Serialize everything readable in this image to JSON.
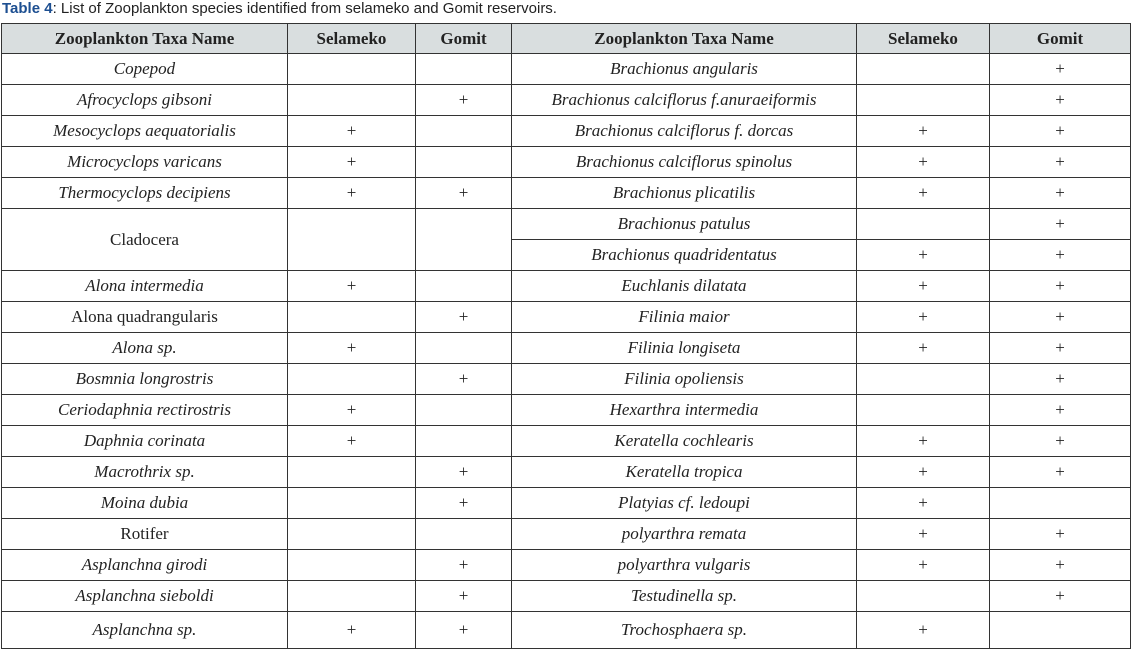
{
  "caption": {
    "label": "Table 4",
    "text": ": List of Zooplankton species identified from selameko and Gomit reservoirs."
  },
  "headers": [
    "Zooplankton Taxa Name",
    "Selameko",
    "Gomit",
    "Zooplankton Taxa Name",
    "Selameko",
    "Gomit"
  ],
  "left": [
    {
      "name": "Copepod",
      "selameko": "",
      "gomit": "",
      "italic": true
    },
    {
      "name": "Afrocyclops gibsoni",
      "selameko": "",
      "gomit": "+",
      "italic": true
    },
    {
      "name": "Mesocyclops aequatorialis",
      "selameko": "+",
      "gomit": "",
      "italic": true
    },
    {
      "name": "Microcyclops varicans",
      "selameko": "+",
      "gomit": "",
      "italic": true
    },
    {
      "name": "Thermocyclops decipiens",
      "selameko": "+",
      "gomit": "+",
      "italic": true
    },
    {
      "name": "Cladocera",
      "selameko": "",
      "gomit": "",
      "italic": false,
      "rowspan": 2
    },
    {
      "name": "Alona intermedia",
      "selameko": "+",
      "gomit": "",
      "italic": true
    },
    {
      "name": "Alona quadrangularis",
      "selameko": "",
      "gomit": "+",
      "italic": false
    },
    {
      "name": "Alona sp.",
      "selameko": "+",
      "gomit": "",
      "italic": true
    },
    {
      "name": "Bosmnia longrostris",
      "selameko": "",
      "gomit": "+",
      "italic": true
    },
    {
      "name": "Ceriodaphnia rectirostris",
      "selameko": "+",
      "gomit": "",
      "italic": true
    },
    {
      "name": "Daphnia corinata",
      "selameko": "+",
      "gomit": "",
      "italic": true
    },
    {
      "name": "Macrothrix sp.",
      "selameko": "",
      "gomit": "+",
      "italic": true
    },
    {
      "name": "Moina dubia",
      "selameko": "",
      "gomit": "+",
      "italic": true
    },
    {
      "name": "Rotifer",
      "selameko": "",
      "gomit": "",
      "italic": false
    },
    {
      "name": "Asplanchna girodi",
      "selameko": "",
      "gomit": "+",
      "italic": true
    },
    {
      "name": "Asplanchna sieboldi",
      "selameko": "",
      "gomit": "+",
      "italic": true
    },
    {
      "name": "Asplanchna sp.",
      "selameko": "+",
      "gomit": "+",
      "italic": true
    }
  ],
  "right": [
    {
      "name": "Brachionus angularis",
      "selameko": "",
      "gomit": "+"
    },
    {
      "name": "Brachionus calciflorus f.anuraeiformis",
      "selameko": "",
      "gomit": "+"
    },
    {
      "name": "Brachionus calciflorus f. dorcas",
      "selameko": "+",
      "gomit": "+"
    },
    {
      "name": "Brachionus calciflorus spinolus",
      "selameko": "+",
      "gomit": "+"
    },
    {
      "name": "Brachionus plicatilis",
      "selameko": "+",
      "gomit": "+"
    },
    {
      "name": "Brachionus patulus",
      "selameko": "",
      "gomit": "+"
    },
    {
      "name": "Brachionus quadridentatus",
      "selameko": "+",
      "gomit": "+"
    },
    {
      "name": "Euchlanis dilatata",
      "selameko": "+",
      "gomit": "+"
    },
    {
      "name": "Filinia maior",
      "selameko": "+",
      "gomit": "+"
    },
    {
      "name": "Filinia longiseta",
      "selameko": "+",
      "gomit": "+"
    },
    {
      "name": "Filinia opoliensis",
      "selameko": "",
      "gomit": "+"
    },
    {
      "name": "Hexarthra intermedia",
      "selameko": "",
      "gomit": "+"
    },
    {
      "name": "Keratella cochlearis",
      "selameko": "+",
      "gomit": "+"
    },
    {
      "name": "Keratella tropica",
      "selameko": "+",
      "gomit": "+"
    },
    {
      "name": "Platyias cf. ledoupi",
      "selameko": "+",
      "gomit": ""
    },
    {
      "name": "polyarthra remata",
      "selameko": "+",
      "gomit": "+"
    },
    {
      "name": "polyarthra vulgaris",
      "selameko": "+",
      "gomit": "+"
    },
    {
      "name": "Testudinella sp.",
      "selameko": "",
      "gomit": "+"
    },
    {
      "name": "Trochosphaera sp.",
      "selameko": "+",
      "gomit": ""
    }
  ]
}
